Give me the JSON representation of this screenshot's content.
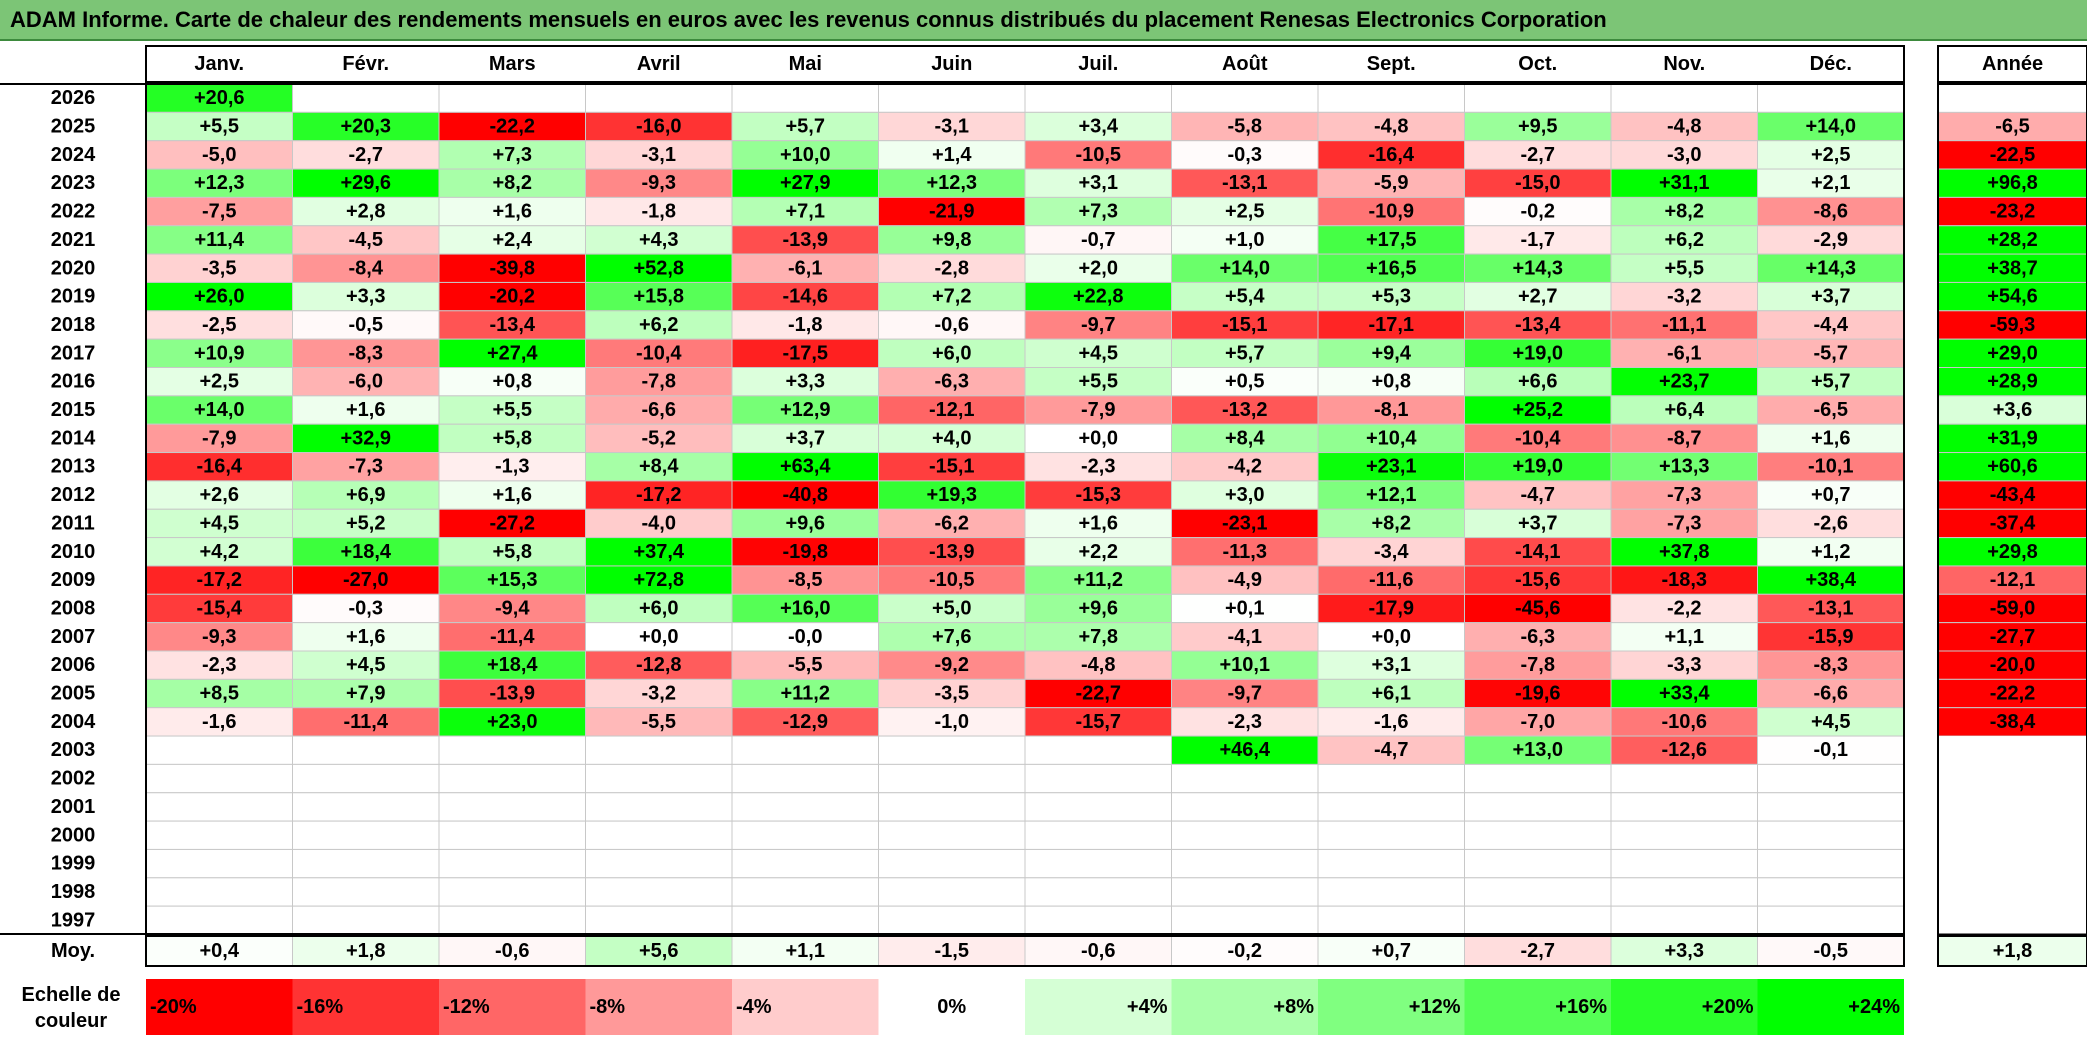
{
  "title": "ADAM Informe. Carte de chaleur des rendements mensuels en euros avec les revenus connus distribués du placement Renesas Electronics Corporation",
  "chart_data": {
    "type": "heatmap",
    "title": "ADAM Informe. Carte de chaleur des rendements mensuels en euros avec les revenus connus distribués du placement Renesas Electronics Corporation",
    "months": [
      "Janv.",
      "Févr.",
      "Mars",
      "Avril",
      "Mai",
      "Juin",
      "Juil.",
      "Août",
      "Sept.",
      "Oct.",
      "Nov.",
      "Déc."
    ],
    "year_header": "Année",
    "avg_label": "Moy.",
    "rows": [
      {
        "year": "2026",
        "values": [
          "+20,6",
          "",
          "",
          "",
          "",
          "",
          "",
          "",
          "",
          "",
          "",
          ""
        ],
        "annual": ""
      },
      {
        "year": "2025",
        "values": [
          "+5,5",
          "+20,3",
          "-22,2",
          "-16,0",
          "+5,7",
          "-3,1",
          "+3,4",
          "-5,8",
          "-4,8",
          "+9,5",
          "-4,8",
          "+14,0"
        ],
        "annual": "-6,5"
      },
      {
        "year": "2024",
        "values": [
          "-5,0",
          "-2,7",
          "+7,3",
          "-3,1",
          "+10,0",
          "+1,4",
          "-10,5",
          "-0,3",
          "-16,4",
          "-2,7",
          "-3,0",
          "+2,5"
        ],
        "annual": "-22,5"
      },
      {
        "year": "2023",
        "values": [
          "+12,3",
          "+29,6",
          "+8,2",
          "-9,3",
          "+27,9",
          "+12,3",
          "+3,1",
          "-13,1",
          "-5,9",
          "-15,0",
          "+31,1",
          "+2,1"
        ],
        "annual": "+96,8"
      },
      {
        "year": "2022",
        "values": [
          "-7,5",
          "+2,8",
          "+1,6",
          "-1,8",
          "+7,1",
          "-21,9",
          "+7,3",
          "+2,5",
          "-10,9",
          "-0,2",
          "+8,2",
          "-8,6"
        ],
        "annual": "-23,2"
      },
      {
        "year": "2021",
        "values": [
          "+11,4",
          "-4,5",
          "+2,4",
          "+4,3",
          "-13,9",
          "+9,8",
          "-0,7",
          "+1,0",
          "+17,5",
          "-1,7",
          "+6,2",
          "-2,9"
        ],
        "annual": "+28,2"
      },
      {
        "year": "2020",
        "values": [
          "-3,5",
          "-8,4",
          "-39,8",
          "+52,8",
          "-6,1",
          "-2,8",
          "+2,0",
          "+14,0",
          "+16,5",
          "+14,3",
          "+5,5",
          "+14,3"
        ],
        "annual": "+38,7"
      },
      {
        "year": "2019",
        "values": [
          "+26,0",
          "+3,3",
          "-20,2",
          "+15,8",
          "-14,6",
          "+7,2",
          "+22,8",
          "+5,4",
          "+5,3",
          "+2,7",
          "-3,2",
          "+3,7"
        ],
        "annual": "+54,6"
      },
      {
        "year": "2018",
        "values": [
          "-2,5",
          "-0,5",
          "-13,4",
          "+6,2",
          "-1,8",
          "-0,6",
          "-9,7",
          "-15,1",
          "-17,1",
          "-13,4",
          "-11,1",
          "-4,4"
        ],
        "annual": "-59,3"
      },
      {
        "year": "2017",
        "values": [
          "+10,9",
          "-8,3",
          "+27,4",
          "-10,4",
          "-17,5",
          "+6,0",
          "+4,5",
          "+5,7",
          "+9,4",
          "+19,0",
          "-6,1",
          "-5,7"
        ],
        "annual": "+29,0"
      },
      {
        "year": "2016",
        "values": [
          "+2,5",
          "-6,0",
          "+0,8",
          "-7,8",
          "+3,3",
          "-6,3",
          "+5,5",
          "+0,5",
          "+0,8",
          "+6,6",
          "+23,7",
          "+5,7"
        ],
        "annual": "+28,9"
      },
      {
        "year": "2015",
        "values": [
          "+14,0",
          "+1,6",
          "+5,5",
          "-6,6",
          "+12,9",
          "-12,1",
          "-7,9",
          "-13,2",
          "-8,1",
          "+25,2",
          "+6,4",
          "-6,5"
        ],
        "annual": "+3,6"
      },
      {
        "year": "2014",
        "values": [
          "-7,9",
          "+32,9",
          "+5,8",
          "-5,2",
          "+3,7",
          "+4,0",
          "+0,0",
          "+8,4",
          "+10,4",
          "-10,4",
          "-8,7",
          "+1,6"
        ],
        "annual": "+31,9"
      },
      {
        "year": "2013",
        "values": [
          "-16,4",
          "-7,3",
          "-1,3",
          "+8,4",
          "+63,4",
          "-15,1",
          "-2,3",
          "-4,2",
          "+23,1",
          "+19,0",
          "+13,3",
          "-10,1"
        ],
        "annual": "+60,6"
      },
      {
        "year": "2012",
        "values": [
          "+2,6",
          "+6,9",
          "+1,6",
          "-17,2",
          "-40,8",
          "+19,3",
          "-15,3",
          "+3,0",
          "+12,1",
          "-4,7",
          "-7,3",
          "+0,7"
        ],
        "annual": "-43,4"
      },
      {
        "year": "2011",
        "values": [
          "+4,5",
          "+5,2",
          "-27,2",
          "-4,0",
          "+9,6",
          "-6,2",
          "+1,6",
          "-23,1",
          "+8,2",
          "+3,7",
          "-7,3",
          "-2,6"
        ],
        "annual": "-37,4"
      },
      {
        "year": "2010",
        "values": [
          "+4,2",
          "+18,4",
          "+5,8",
          "+37,4",
          "-19,8",
          "-13,9",
          "+2,2",
          "-11,3",
          "-3,4",
          "-14,1",
          "+37,8",
          "+1,2"
        ],
        "annual": "+29,8"
      },
      {
        "year": "2009",
        "values": [
          "-17,2",
          "-27,0",
          "+15,3",
          "+72,8",
          "-8,5",
          "-10,5",
          "+11,2",
          "-4,9",
          "-11,6",
          "-15,6",
          "-18,3",
          "+38,4"
        ],
        "annual": "-12,1"
      },
      {
        "year": "2008",
        "values": [
          "-15,4",
          "-0,3",
          "-9,4",
          "+6,0",
          "+16,0",
          "+5,0",
          "+9,6",
          "+0,1",
          "-17,9",
          "-45,6",
          "-2,2",
          "-13,1"
        ],
        "annual": "-59,0"
      },
      {
        "year": "2007",
        "values": [
          "-9,3",
          "+1,6",
          "-11,4",
          "+0,0",
          "-0,0",
          "+7,6",
          "+7,8",
          "-4,1",
          "+0,0",
          "-6,3",
          "+1,1",
          "-15,9"
        ],
        "annual": "-27,7"
      },
      {
        "year": "2006",
        "values": [
          "-2,3",
          "+4,5",
          "+18,4",
          "-12,8",
          "-5,5",
          "-9,2",
          "-4,8",
          "+10,1",
          "+3,1",
          "-7,8",
          "-3,3",
          "-8,3"
        ],
        "annual": "-20,0"
      },
      {
        "year": "2005",
        "values": [
          "+8,5",
          "+7,9",
          "-13,9",
          "-3,2",
          "+11,2",
          "-3,5",
          "-22,7",
          "-9,7",
          "+6,1",
          "-19,6",
          "+33,4",
          "-6,6"
        ],
        "annual": "-22,2"
      },
      {
        "year": "2004",
        "values": [
          "-1,6",
          "-11,4",
          "+23,0",
          "-5,5",
          "-12,9",
          "-1,0",
          "-15,7",
          "-2,3",
          "-1,6",
          "-7,0",
          "-10,6",
          "+4,5"
        ],
        "annual": "-38,4"
      },
      {
        "year": "2003",
        "values": [
          "",
          "",
          "",
          "",
          "",
          "",
          "",
          "+46,4",
          "-4,7",
          "+13,0",
          "-12,6",
          "-0,1"
        ],
        "annual": ""
      },
      {
        "year": "2002",
        "values": [
          "",
          "",
          "",
          "",
          "",
          "",
          "",
          "",
          "",
          "",
          "",
          ""
        ],
        "annual": ""
      },
      {
        "year": "2001",
        "values": [
          "",
          "",
          "",
          "",
          "",
          "",
          "",
          "",
          "",
          "",
          "",
          ""
        ],
        "annual": ""
      },
      {
        "year": "2000",
        "values": [
          "",
          "",
          "",
          "",
          "",
          "",
          "",
          "",
          "",
          "",
          "",
          ""
        ],
        "annual": ""
      },
      {
        "year": "1999",
        "values": [
          "",
          "",
          "",
          "",
          "",
          "",
          "",
          "",
          "",
          "",
          "",
          ""
        ],
        "annual": ""
      },
      {
        "year": "1998",
        "values": [
          "",
          "",
          "",
          "",
          "",
          "",
          "",
          "",
          "",
          "",
          "",
          ""
        ],
        "annual": ""
      },
      {
        "year": "1997",
        "values": [
          "",
          "",
          "",
          "",
          "",
          "",
          "",
          "",
          "",
          "",
          "",
          ""
        ],
        "annual": ""
      }
    ],
    "averages": [
      "+0,4",
      "+1,8",
      "-0,6",
      "+5,6",
      "+1,1",
      "-1,5",
      "-0,6",
      "-0,2",
      "+0,7",
      "-2,7",
      "+3,3",
      "-0,5"
    ],
    "average_annual": "+1,8",
    "scale_label": [
      "Echelle de",
      "couleur"
    ],
    "scale": [
      "-20%",
      "-16%",
      "-12%",
      "-8%",
      "-4%",
      "0%",
      "+4%",
      "+8%",
      "+12%",
      "+16%",
      "+20%",
      "+24%"
    ],
    "colors": {
      "negative_max": "#ff0000",
      "neutral": "#ffffff",
      "positive_max": "#00ff00",
      "title_bg": "#7cc576"
    }
  }
}
